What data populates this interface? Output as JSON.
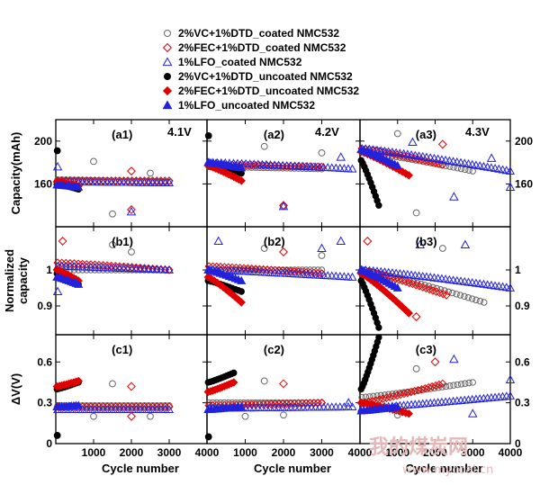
{
  "chart_data": {
    "type": "scatter",
    "legend": {
      "placement": "top",
      "entries": [
        {
          "label": "2%VC+1%DTD_coated NMC532",
          "color": "#666666",
          "marker": "circle-open"
        },
        {
          "label": "2%FEC+1%DTD_coated NMC532",
          "color": "#e00000",
          "marker": "diamond-open"
        },
        {
          "label": "1%LFO_coated NMC532",
          "color": "#2222dd",
          "marker": "triangle-open"
        },
        {
          "label": "2%VC+1%DTD_uncoated NMC532",
          "color": "#000000",
          "marker": "circle-filled"
        },
        {
          "label": "2%FEC+1%DTD_uncoated NMC532",
          "color": "#e00000",
          "marker": "diamond-filled"
        },
        {
          "label": "1%LFO_uncoated NMC532",
          "color": "#2222dd",
          "marker": "triangle-filled"
        }
      ]
    },
    "columns": [
      {
        "voltage": "4.1V",
        "xlim": [
          0,
          4000
        ],
        "xticks": [
          "1000",
          "2000",
          "3000",
          "4000"
        ]
      },
      {
        "voltage": "4.2V",
        "xlim": [
          0,
          4000
        ],
        "xticks": [
          "1000",
          "2000",
          "3000",
          "4000"
        ]
      },
      {
        "voltage": "4.3V",
        "xlim": [
          0,
          4000
        ],
        "xticks": [
          "1000",
          "2000",
          "3000",
          "4000"
        ]
      }
    ],
    "rows": [
      {
        "ylabel": "Capacity(mAh)",
        "ylim": [
          120,
          220
        ],
        "yticks": [
          "160",
          "200"
        ]
      },
      {
        "ylabel": "Normalized capacity",
        "ylim": [
          0.82,
          1.12
        ],
        "yticks": [
          "0.9",
          "1"
        ]
      },
      {
        "ylabel": "ΔV(V)",
        "ylim": [
          0,
          0.8
        ],
        "yticks": [
          "0",
          "0.3",
          "0.6"
        ]
      }
    ],
    "xlabel": "Cycle number",
    "panels": [
      {
        "id": "(a1)",
        "row": 0,
        "col": 0,
        "series": [
          {
            "s": 0,
            "x": [
              50,
              3000
            ],
            "y": [
              164,
              162
            ],
            "n": 28
          },
          {
            "s": 1,
            "x": [
              50,
              3000
            ],
            "y": [
              163,
              163
            ],
            "n": 28
          },
          {
            "s": 2,
            "x": [
              50,
              3000
            ],
            "y": [
              162,
              161
            ],
            "n": 28
          },
          {
            "s": 3,
            "x": [
              30,
              600
            ],
            "y": [
              160,
              155
            ],
            "n": 10
          },
          {
            "s": 4,
            "x": [
              30,
              600
            ],
            "y": [
              162,
              158
            ],
            "n": 10
          },
          {
            "s": 5,
            "x": [
              30,
              600
            ],
            "y": [
              159,
              157
            ],
            "n": 10
          }
        ],
        "outliers": [
          {
            "s": 3,
            "x": 40,
            "y": 191
          },
          {
            "s": 0,
            "x": 1000,
            "y": 181
          },
          {
            "s": 0,
            "x": 1500,
            "y": 132
          },
          {
            "s": 0,
            "x": 2500,
            "y": 170
          },
          {
            "s": 1,
            "x": 2000,
            "y": 172
          },
          {
            "s": 1,
            "x": 2000,
            "y": 136
          },
          {
            "s": 2,
            "x": 2000,
            "y": 134
          },
          {
            "s": 2,
            "x": 50,
            "y": 176
          }
        ]
      },
      {
        "id": "(a2)",
        "row": 0,
        "col": 1,
        "series": [
          {
            "s": 0,
            "x": [
              50,
              3000
            ],
            "y": [
              176,
              174
            ],
            "n": 30
          },
          {
            "s": 1,
            "x": [
              50,
              3000
            ],
            "y": [
              178,
              176
            ],
            "n": 30
          },
          {
            "s": 2,
            "x": [
              50,
              3800
            ],
            "y": [
              180,
              174
            ],
            "n": 36
          },
          {
            "s": 3,
            "x": [
              30,
              900
            ],
            "y": [
              178,
              170
            ],
            "n": 14
          },
          {
            "s": 4,
            "x": [
              30,
              900
            ],
            "y": [
              177,
              163
            ],
            "n": 14
          },
          {
            "s": 5,
            "x": [
              30,
              900
            ],
            "y": [
              180,
              175
            ],
            "n": 14
          }
        ],
        "outliers": [
          {
            "s": 3,
            "x": 40,
            "y": 205
          },
          {
            "s": 0,
            "x": 1500,
            "y": 195
          },
          {
            "s": 0,
            "x": 2000,
            "y": 139
          },
          {
            "s": 0,
            "x": 3000,
            "y": 189
          },
          {
            "s": 1,
            "x": 2000,
            "y": 140
          },
          {
            "s": 2,
            "x": 3500,
            "y": 185
          },
          {
            "s": 2,
            "x": 2000,
            "y": 139
          }
        ]
      },
      {
        "id": "(a3)",
        "row": 0,
        "col": 2,
        "series": [
          {
            "s": 0,
            "x": [
              50,
              3000
            ],
            "y": [
              190,
              172
            ],
            "n": 30
          },
          {
            "s": 1,
            "x": [
              50,
              2200
            ],
            "y": [
              193,
              178
            ],
            "n": 24
          },
          {
            "s": 2,
            "x": [
              50,
              4000
            ],
            "y": [
              193,
              172
            ],
            "n": 40
          },
          {
            "s": 3,
            "x": [
              30,
              500
            ],
            "y": [
              182,
              140
            ],
            "n": 12
          },
          {
            "s": 4,
            "x": [
              30,
              1300
            ],
            "y": [
              190,
              168
            ],
            "n": 16
          },
          {
            "s": 5,
            "x": [
              30,
              1000
            ],
            "y": [
              192,
              177
            ],
            "n": 14
          }
        ],
        "outliers": [
          {
            "s": 0,
            "x": 1000,
            "y": 207
          },
          {
            "s": 0,
            "x": 1500,
            "y": 133
          },
          {
            "s": 1,
            "x": 2200,
            "y": 197
          },
          {
            "s": 2,
            "x": 2500,
            "y": 148
          },
          {
            "s": 2,
            "x": 3500,
            "y": 184
          },
          {
            "s": 2,
            "x": 4000,
            "y": 157
          },
          {
            "s": 2,
            "x": 1400,
            "y": 199
          }
        ]
      },
      {
        "id": "(b1)",
        "row": 1,
        "col": 0,
        "series": [
          {
            "s": 0,
            "x": [
              50,
              3000
            ],
            "y": [
              1.0,
              1.0
            ],
            "n": 28
          },
          {
            "s": 1,
            "x": [
              50,
              3000
            ],
            "y": [
              1.02,
              1.0
            ],
            "n": 28
          },
          {
            "s": 2,
            "x": [
              50,
              3000
            ],
            "y": [
              1.01,
              1.0
            ],
            "n": 28
          },
          {
            "s": 3,
            "x": [
              30,
              600
            ],
            "y": [
              0.99,
              0.96
            ],
            "n": 10
          },
          {
            "s": 4,
            "x": [
              30,
              600
            ],
            "y": [
              1.0,
              0.97
            ],
            "n": 10
          },
          {
            "s": 5,
            "x": [
              30,
              600
            ],
            "y": [
              0.98,
              0.96
            ],
            "n": 10
          }
        ],
        "outliers": [
          {
            "s": 1,
            "x": 180,
            "y": 1.08
          },
          {
            "s": 0,
            "x": 1500,
            "y": 1.07
          },
          {
            "s": 2,
            "x": 50,
            "y": 0.94
          },
          {
            "s": 0,
            "x": 2000,
            "y": 1.05
          }
        ]
      },
      {
        "id": "(b2)",
        "row": 1,
        "col": 1,
        "series": [
          {
            "s": 0,
            "x": [
              50,
              3000
            ],
            "y": [
              1.0,
              1.0
            ],
            "n": 30
          },
          {
            "s": 1,
            "x": [
              50,
              3000
            ],
            "y": [
              1.01,
              0.99
            ],
            "n": 30
          },
          {
            "s": 2,
            "x": [
              50,
              3800
            ],
            "y": [
              1.0,
              0.98
            ],
            "n": 36
          },
          {
            "s": 3,
            "x": [
              30,
              900
            ],
            "y": [
              0.97,
              0.94
            ],
            "n": 12
          },
          {
            "s": 4,
            "x": [
              30,
              900
            ],
            "y": [
              0.98,
              0.91
            ],
            "n": 12
          },
          {
            "s": 5,
            "x": [
              30,
              900
            ],
            "y": [
              1.0,
              0.97
            ],
            "n": 12
          }
        ],
        "outliers": [
          {
            "s": 0,
            "x": 1500,
            "y": 1.06
          },
          {
            "s": 1,
            "x": 2000,
            "y": 1.05
          },
          {
            "s": 2,
            "x": 3500,
            "y": 1.08
          },
          {
            "s": 0,
            "x": 3000,
            "y": 1.04
          },
          {
            "s": 2,
            "x": 300,
            "y": 1.08
          },
          {
            "s": 2,
            "x": 3000,
            "y": 1.06
          }
        ]
      },
      {
        "id": "(b3)",
        "row": 1,
        "col": 2,
        "series": [
          {
            "s": 0,
            "x": [
              50,
              3300
            ],
            "y": [
              1.0,
              0.91
            ],
            "n": 32
          },
          {
            "s": 1,
            "x": [
              50,
              2300
            ],
            "y": [
              1.0,
              0.93
            ],
            "n": 26
          },
          {
            "s": 2,
            "x": [
              50,
              4000
            ],
            "y": [
              1.0,
              0.95
            ],
            "n": 40
          },
          {
            "s": 3,
            "x": [
              30,
              500
            ],
            "y": [
              0.97,
              0.84
            ],
            "n": 12
          },
          {
            "s": 4,
            "x": [
              30,
              1300
            ],
            "y": [
              0.99,
              0.88
            ],
            "n": 16
          },
          {
            "s": 5,
            "x": [
              30,
              1000
            ],
            "y": [
              1.0,
              0.95
            ],
            "n": 14
          }
        ],
        "outliers": [
          {
            "s": 1,
            "x": 200,
            "y": 1.08
          },
          {
            "s": 0,
            "x": 2200,
            "y": 1.06
          },
          {
            "s": 2,
            "x": 2800,
            "y": 1.07
          },
          {
            "s": 2,
            "x": 1600,
            "y": 1.07
          },
          {
            "s": 1,
            "x": 1500,
            "y": 0.87
          }
        ]
      },
      {
        "id": "(c1)",
        "row": 2,
        "col": 0,
        "series": [
          {
            "s": 0,
            "x": [
              50,
              3000
            ],
            "y": [
              0.28,
              0.28
            ],
            "n": 28
          },
          {
            "s": 1,
            "x": [
              50,
              3000
            ],
            "y": [
              0.27,
              0.27
            ],
            "n": 28
          },
          {
            "s": 2,
            "x": [
              50,
              3000
            ],
            "y": [
              0.25,
              0.25
            ],
            "n": 28
          },
          {
            "s": 3,
            "x": [
              30,
              600
            ],
            "y": [
              0.4,
              0.45
            ],
            "n": 10
          },
          {
            "s": 4,
            "x": [
              30,
              600
            ],
            "y": [
              0.42,
              0.46
            ],
            "n": 10
          },
          {
            "s": 5,
            "x": [
              30,
              600
            ],
            "y": [
              0.27,
              0.28
            ],
            "n": 10
          }
        ],
        "outliers": [
          {
            "s": 3,
            "x": 40,
            "y": 0.06
          },
          {
            "s": 0,
            "x": 1000,
            "y": 0.2
          },
          {
            "s": 0,
            "x": 1500,
            "y": 0.44
          },
          {
            "s": 1,
            "x": 2000,
            "y": 0.42
          },
          {
            "s": 1,
            "x": 2000,
            "y": 0.2
          },
          {
            "s": 0,
            "x": 2500,
            "y": 0.2
          }
        ]
      },
      {
        "id": "(c2)",
        "row": 2,
        "col": 1,
        "series": [
          {
            "s": 0,
            "x": [
              50,
              3000
            ],
            "y": [
              0.3,
              0.3
            ],
            "n": 30
          },
          {
            "s": 1,
            "x": [
              50,
              3000
            ],
            "y": [
              0.28,
              0.3
            ],
            "n": 30
          },
          {
            "s": 2,
            "x": [
              50,
              3800
            ],
            "y": [
              0.26,
              0.27
            ],
            "n": 36
          },
          {
            "s": 3,
            "x": [
              30,
              700
            ],
            "y": [
              0.45,
              0.52
            ],
            "n": 12
          },
          {
            "s": 4,
            "x": [
              30,
              700
            ],
            "y": [
              0.38,
              0.45
            ],
            "n": 12
          },
          {
            "s": 5,
            "x": [
              30,
              900
            ],
            "y": [
              0.25,
              0.27
            ],
            "n": 12
          }
        ],
        "outliers": [
          {
            "s": 3,
            "x": 40,
            "y": 0.05
          },
          {
            "s": 0,
            "x": 1000,
            "y": 0.2
          },
          {
            "s": 0,
            "x": 1500,
            "y": 0.46
          },
          {
            "s": 1,
            "x": 2000,
            "y": 0.44
          },
          {
            "s": 0,
            "x": 2000,
            "y": 0.21
          },
          {
            "s": 2,
            "x": 3700,
            "y": 0.3
          }
        ]
      },
      {
        "id": "(c3)",
        "row": 2,
        "col": 2,
        "series": [
          {
            "s": 0,
            "x": [
              50,
              3000
            ],
            "y": [
              0.34,
              0.45
            ],
            "n": 30
          },
          {
            "s": 1,
            "x": [
              50,
              2200
            ],
            "y": [
              0.3,
              0.44
            ],
            "n": 24
          },
          {
            "s": 2,
            "x": [
              50,
              4000
            ],
            "y": [
              0.26,
              0.35
            ],
            "n": 40
          },
          {
            "s": 3,
            "x": [
              30,
              500
            ],
            "y": [
              0.4,
              0.78
            ],
            "n": 14
          },
          {
            "s": 4,
            "x": [
              30,
              1300
            ],
            "y": [
              0.3,
              0.22
            ],
            "n": 16
          },
          {
            "s": 5,
            "x": [
              30,
              1000
            ],
            "y": [
              0.24,
              0.27
            ],
            "n": 14
          }
        ],
        "outliers": [
          {
            "s": 0,
            "x": 1000,
            "y": 0.21
          },
          {
            "s": 0,
            "x": 1500,
            "y": 0.55
          },
          {
            "s": 1,
            "x": 2000,
            "y": 0.6
          },
          {
            "s": 2,
            "x": 2500,
            "y": 0.62
          },
          {
            "s": 2,
            "x": 4000,
            "y": 0.47
          },
          {
            "s": 2,
            "x": 3000,
            "y": 0.22
          }
        ]
      }
    ]
  },
  "watermark": {
    "text": "我的煤炭网",
    "url": "www.mycoal.cn"
  }
}
